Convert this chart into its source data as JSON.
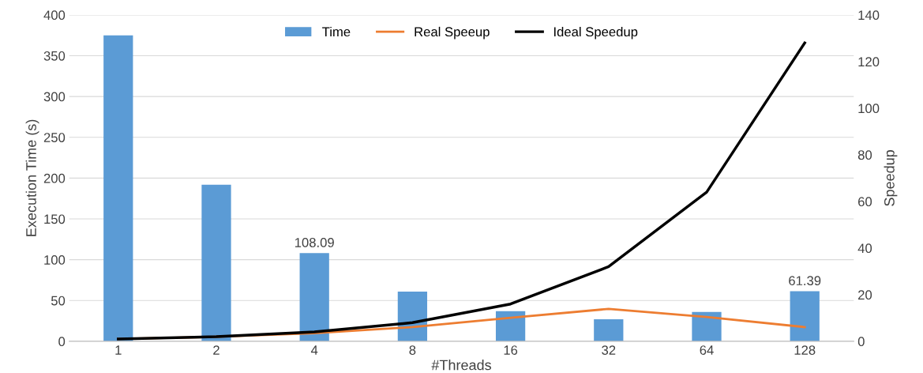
{
  "chart_data": {
    "type": "bar",
    "xlabel": "#Threads",
    "ylabel": "Execution Time (s)",
    "y2label": "Speedup",
    "categories": [
      "1",
      "2",
      "4",
      "8",
      "16",
      "32",
      "64",
      "128"
    ],
    "series": [
      {
        "name": "Time",
        "color": "#5b9bd5",
        "values": [
          375,
          192,
          108.09,
          61,
          37,
          27,
          36,
          61.39
        ],
        "value_labels": [
          null,
          null,
          "108.09",
          null,
          null,
          null,
          null,
          "61.39"
        ]
      },
      {
        "name": "Real Speeup",
        "type": "line",
        "axis": "y2",
        "color": "#ed7d31",
        "values": [
          1,
          1.95,
          3.5,
          6.1,
          10.1,
          13.9,
          10.4,
          6.1
        ]
      },
      {
        "name": "Ideal Speedup",
        "type": "line",
        "axis": "y2",
        "color": "#000000",
        "values": [
          1,
          2,
          4,
          8,
          16,
          32,
          64,
          128
        ]
      }
    ],
    "ylim": [
      0,
      400
    ],
    "yticks": [
      0,
      50,
      100,
      150,
      200,
      250,
      300,
      350,
      400
    ],
    "y2lim": [
      0,
      140
    ],
    "y2ticks": [
      0,
      20,
      40,
      60,
      80,
      100,
      120,
      140
    ],
    "grid": "y",
    "legend": "top"
  }
}
